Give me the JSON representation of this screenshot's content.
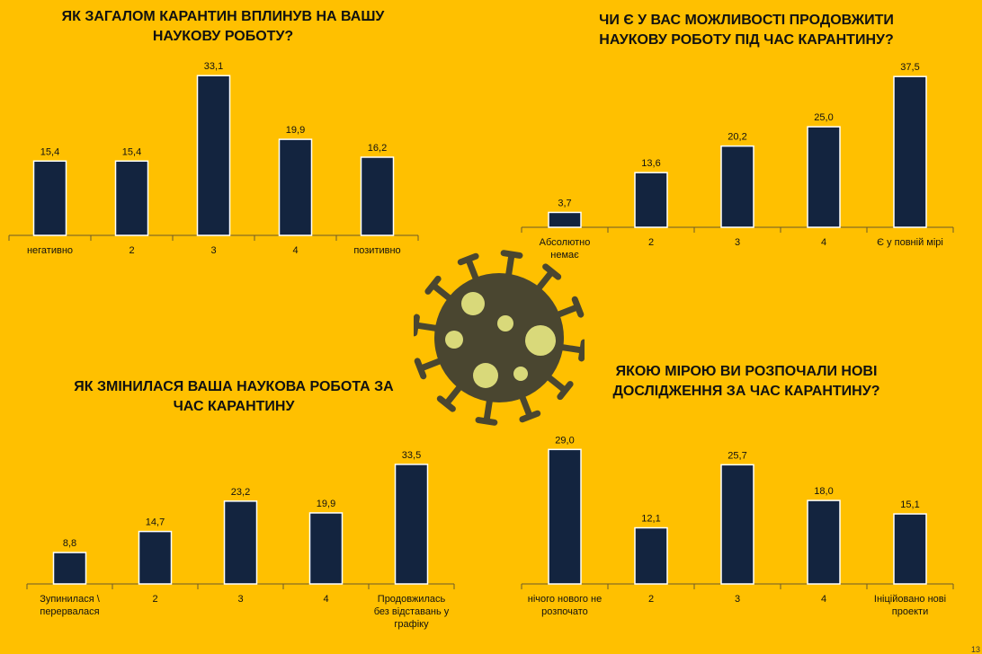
{
  "chart_data": [
    {
      "type": "bar",
      "title": "ЯК ЗАГАЛОМ КАРАНТИН ВПЛИНУВ НА ВАШУ\nНАУКОВУ РОБОТУ?",
      "categories": [
        [
          "негативно"
        ],
        [
          "2"
        ],
        [
          "3"
        ],
        [
          "4"
        ],
        [
          "позитивно"
        ]
      ],
      "values": [
        15.4,
        15.4,
        33.1,
        19.9,
        16.2
      ],
      "value_labels": [
        "15,4",
        "15,4",
        "33,1",
        "19,9",
        "16,2"
      ],
      "ylim": [
        0,
        35
      ],
      "bar_color": "#13243F"
    },
    {
      "type": "bar",
      "title": "ЧИ Є У ВАС МОЖЛИВОСТІ ПРОДОВЖИТИ\nНАУКОВУ РОБОТУ ПІД ЧАС КАРАНТИНУ?",
      "categories": [
        [
          "Абсолютно",
          "немає"
        ],
        [
          "2"
        ],
        [
          "3"
        ],
        [
          "4"
        ],
        [
          "Є у повній мірі"
        ]
      ],
      "values": [
        3.7,
        13.6,
        20.2,
        25.0,
        37.5
      ],
      "value_labels": [
        "3,7",
        "13,6",
        "20,2",
        "25,0",
        "37,5"
      ],
      "ylim": [
        0,
        40
      ],
      "bar_color": "#13243F"
    },
    {
      "type": "bar",
      "title": "ЯК ЗМІНИЛАСЯ ВАША НАУКОВА РОБОТА ЗА\nЧАС КАРАНТИНУ",
      "categories": [
        [
          "Зупинилася \\",
          "перервалася"
        ],
        [
          "2"
        ],
        [
          "3"
        ],
        [
          "4"
        ],
        [
          "Продовжилась",
          "без відставань у",
          "графіку"
        ]
      ],
      "values": [
        8.8,
        14.7,
        23.2,
        19.9,
        33.5
      ],
      "value_labels": [
        "8,8",
        "14,7",
        "23,2",
        "19,9",
        "33,5"
      ],
      "ylim": [
        0,
        36
      ],
      "bar_color": "#13243F"
    },
    {
      "type": "bar",
      "title": "ЯКОЮ МІРОЮ ВИ РОЗПОЧАЛИ НОВІ\nДОСЛІДЖЕННЯ ЗА ЧАС КАРАНТИНУ?",
      "categories": [
        [
          "нічого нового не",
          "розпочато"
        ],
        [
          "2"
        ],
        [
          "3"
        ],
        [
          "4"
        ],
        [
          "Ініційовано нові",
          "проекти"
        ]
      ],
      "values": [
        29.0,
        12.1,
        25.7,
        18.0,
        15.1
      ],
      "value_labels": [
        "29,0",
        "12,1",
        "25,7",
        "18,0",
        "15,1"
      ],
      "ylim": [
        0,
        31
      ],
      "bar_color": "#13243F"
    }
  ],
  "decor": {
    "virus_icon": "virus-icon",
    "virus_color": "#4A4630",
    "spot_color": "#D9D97A"
  },
  "page_number": "13"
}
